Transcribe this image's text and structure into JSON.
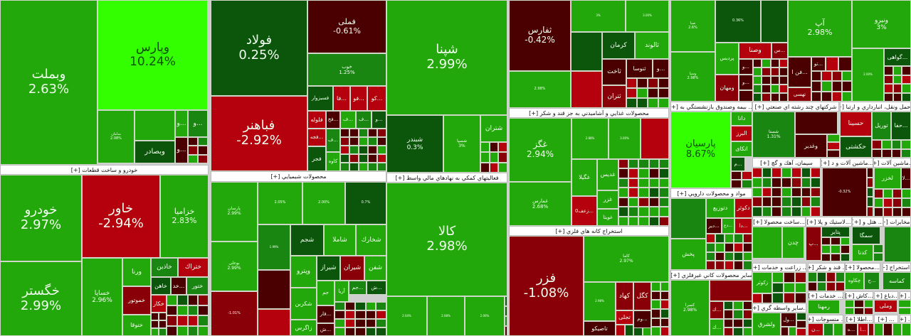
{
  "colors": {
    "lime": "#33ff00",
    "green": "#22a80a",
    "mid": "#1a8612",
    "dark": "#0b560b",
    "darkred": "#4a0000",
    "mred": "#8a0008",
    "red": "#b5000e"
  },
  "headers": [
    "خودرو و ساخت قطعات [+]",
    "محصولات شيميايي [+]",
    "فعاليتهاي كمكي به نهادهاي مالي واسط [+]",
    "محصولات غذايي و آشاميدني به جز قند و شكر [+]",
    "استخراج كانه هاي فلزي [+]",
    "... بيمه وصندوق بازنشستگي به [+]",
    "شركتهاي چند رشته اي صنعتي [+]",
    "...حمل ونقل، انبارداري و ارتبا [+]",
    "مواد و محصولات دارويي [+]",
    "ساير محصولات كاني غيرفلزي [+]",
    "سيمان، آهك و گچ [+]",
    "...ماشين آلات و د [+]",
    "...ماشين آلات [+]",
    "...ساخت محصولا [+]",
    "...لاستيك و پلا [+]",
    "... هتل و [+]",
    "...مخابرات [+]",
    "... زراعت و خدمات [+]",
    "... قند و شكر [+]",
    "...محصولا [+]",
    "...استخراج [+]",
    "... خدمات [+]",
    "...كاش [+]",
    "...دباغ [+]",
    "... [+]",
    "...ساير واسطه گري [+]",
    "... منسوجات [+]",
    "...اطلا [+]",
    "... [+]",
    "... [+]"
  ],
  "tiles": [
    {
      "symbol": "وبملت",
      "change": "2.63%",
      "color": "green"
    },
    {
      "symbol": "وپارس",
      "change": "10.24%",
      "color": "lime"
    },
    {
      "symbol": "سامان",
      "change": "2.08%",
      "color": "green"
    },
    {
      "symbol": "",
      "change": "",
      "color": "green"
    },
    {
      "symbol": "...و",
      "change": "",
      "color": "green"
    },
    {
      "symbol": "...و",
      "change": "",
      "color": "mid"
    },
    {
      "symbol": "وبصادر",
      "change": "",
      "color": "dark"
    },
    {
      "symbol": "...و",
      "change": "",
      "color": "darkred"
    },
    {
      "symbol": "خودرو",
      "change": "2.97%",
      "color": "green"
    },
    {
      "symbol": "خگستر",
      "change": "2.99%",
      "color": "green"
    },
    {
      "symbol": "خاور",
      "change": "-2.94%",
      "color": "red"
    },
    {
      "symbol": "خزاميا",
      "change": "2.83%",
      "color": "green"
    },
    {
      "symbol": "خساپا",
      "change": "2.96%",
      "color": "green"
    },
    {
      "symbol": "ورنا",
      "change": "",
      "color": "green"
    },
    {
      "symbol": "خموتور",
      "change": "",
      "color": "mred"
    },
    {
      "symbol": "ختوقا",
      "change": "",
      "color": "green"
    },
    {
      "symbol": "خاذين",
      "change": "",
      "color": "mid"
    },
    {
      "symbol": "ختراك",
      "change": "",
      "color": "red"
    },
    {
      "symbol": "خاهن",
      "change": "",
      "color": "dark"
    },
    {
      "symbol": "...خد",
      "change": "",
      "color": "darkred"
    },
    {
      "symbol": "ختور",
      "change": "",
      "color": "mid"
    },
    {
      "symbol": "خكار",
      "change": "",
      "color": "red"
    },
    {
      "symbol": "فولاد",
      "change": "0.25%",
      "color": "dark"
    },
    {
      "symbol": "فملی",
      "change": "-0.61%",
      "color": "darkred"
    },
    {
      "symbol": "خوب",
      "change": "1.25%",
      "color": "mid"
    },
    {
      "symbol": "فسبزوار",
      "change": "",
      "color": "dark"
    },
    {
      "symbol": "...فا",
      "change": "",
      "color": "red"
    },
    {
      "symbol": "...فو",
      "change": "",
      "color": "red"
    },
    {
      "symbol": "...كو",
      "change": "",
      "color": "red"
    },
    {
      "symbol": "فباهنر",
      "change": "-2.92%",
      "color": "red"
    },
    {
      "symbol": "فلوله",
      "change": "",
      "color": "red"
    },
    {
      "symbol": "...فخ",
      "change": "",
      "color": "darkred"
    },
    {
      "symbol": "...ف",
      "change": "",
      "color": "green"
    },
    {
      "symbol": "...ف",
      "change": "",
      "color": "mid"
    },
    {
      "symbol": "...و",
      "change": "",
      "color": "dark"
    },
    {
      "symbol": "...فجه",
      "change": "",
      "color": "red"
    },
    {
      "symbol": "...ف",
      "change": "",
      "color": "mid"
    },
    {
      "symbol": "فجر",
      "change": "",
      "color": "dark"
    },
    {
      "symbol": "كاوه",
      "change": "",
      "color": "green"
    },
    {
      "symbol": "پارسان",
      "change": "2.99%",
      "color": "green"
    },
    {
      "symbol": "",
      "change": "2.05%",
      "color": "green"
    },
    {
      "symbol": "",
      "change": "2.00%",
      "color": "green"
    },
    {
      "symbol": "",
      "change": "0.7%",
      "color": "dark"
    },
    {
      "symbol": "بوعلی",
      "change": "2.99%",
      "color": "green"
    },
    {
      "symbol": "",
      "change": "-1.01%",
      "color": "mred"
    },
    {
      "symbol": "",
      "change": "1.99%",
      "color": "mid"
    },
    {
      "symbol": "شجم",
      "change": "",
      "color": "dark"
    },
    {
      "symbol": "شاملا",
      "change": "",
      "color": "green"
    },
    {
      "symbol": "شخارك",
      "change": "",
      "color": "green"
    },
    {
      "symbol": "",
      "change": "",
      "color": "darkred"
    },
    {
      "symbol": "",
      "change": "",
      "color": "red"
    },
    {
      "symbol": "وپترو",
      "change": "",
      "color": "green"
    },
    {
      "symbol": "شيراز",
      "change": "",
      "color": "dark"
    },
    {
      "symbol": "شيران",
      "change": "",
      "color": "mred"
    },
    {
      "symbol": "شفن",
      "change": "",
      "color": "green"
    },
    {
      "symbol": "شكربن",
      "change": "",
      "color": "green"
    },
    {
      "symbol": "زاگرس",
      "change": "",
      "color": "green"
    },
    {
      "symbol": "جم",
      "change": "",
      "color": "green"
    },
    {
      "symbol": "آريا",
      "change": "",
      "color": "green"
    },
    {
      "symbol": "...جم",
      "change": "",
      "color": "mid"
    },
    {
      "symbol": "...ش",
      "change": "",
      "color": "dark"
    },
    {
      "symbol": "...فار",
      "change": "",
      "color": "darkred"
    },
    {
      "symbol": "...ش",
      "change": "",
      "color": "darkred"
    },
    {
      "symbol": "شپنا",
      "change": "2.99%",
      "color": "green"
    },
    {
      "symbol": "شبندر",
      "change": "0.3%",
      "color": "dark"
    },
    {
      "symbol": "شسپا",
      "change": "3%",
      "color": "green"
    },
    {
      "symbol": "شتران",
      "change": "",
      "color": "green"
    },
    {
      "symbol": "كالا",
      "change": "2.98%",
      "color": "green"
    },
    {
      "symbol": "",
      "change": "2.04%",
      "color": "green"
    },
    {
      "symbol": "",
      "change": "2.08%",
      "color": "green"
    },
    {
      "symbol": "",
      "change": "2.00%",
      "color": "green"
    },
    {
      "symbol": "ثفارس",
      "change": "-0.42%",
      "color": "darkred"
    },
    {
      "symbol": "",
      "change": "3%",
      "color": "green"
    },
    {
      "symbol": "",
      "change": "3.00%",
      "color": "green"
    },
    {
      "symbol": "",
      "change": "",
      "color": "dark"
    },
    {
      "symbol": "كرمان",
      "change": "",
      "color": "dark"
    },
    {
      "symbol": "ثالوند",
      "change": "",
      "color": "green"
    },
    {
      "symbol": "",
      "change": "2.98%",
      "color": "green"
    },
    {
      "symbol": "",
      "change": "",
      "color": "red"
    },
    {
      "symbol": "ثاخت",
      "change": "",
      "color": "darkred"
    },
    {
      "symbol": "ثنوسا",
      "change": "",
      "color": "darkred"
    },
    {
      "symbol": "...و",
      "change": "",
      "color": "darkred"
    },
    {
      "symbol": "ثتران",
      "change": "",
      "color": "mred"
    },
    {
      "symbol": "غگز",
      "change": "2.94%",
      "color": "green"
    },
    {
      "symbol": "غمارس",
      "change": "2.68%",
      "color": "green"
    },
    {
      "symbol": "",
      "change": "2.88%",
      "color": "green"
    },
    {
      "symbol": "",
      "change": "3.00%",
      "color": "green"
    },
    {
      "symbol": "",
      "change": "",
      "color": "red"
    },
    {
      "symbol": "غگيلا",
      "change": "",
      "color": "green"
    },
    {
      "symbol": "غديس",
      "change": "",
      "color": "green"
    },
    {
      "symbol": "غزر",
      "change": "",
      "color": "green"
    },
    {
      "symbol": "غويتا",
      "change": "",
      "color": "green"
    },
    {
      "symbol": "...زعف0",
      "change": "",
      "color": "red"
    },
    {
      "symbol": "فزر",
      "change": "-1.08%",
      "color": "mred"
    },
    {
      "symbol": "كاما",
      "change": "2.97%",
      "color": "green"
    },
    {
      "symbol": "",
      "change": "2.98%",
      "color": "green"
    },
    {
      "symbol": "كهاد",
      "change": "",
      "color": "mred"
    },
    {
      "symbol": "كگل",
      "change": "",
      "color": "mred"
    },
    {
      "symbol": "تجلی",
      "change": "",
      "color": "red"
    },
    {
      "symbol": "...وم",
      "change": "",
      "color": "darkred"
    },
    {
      "symbol": "تاصيكو",
      "change": "",
      "color": "darkred"
    },
    {
      "symbol": "صبا",
      "change": "2.6%",
      "color": "green"
    },
    {
      "symbol": "",
      "change": "0.36%",
      "color": "dark"
    },
    {
      "symbol": "",
      "change": "",
      "color": "dark"
    },
    {
      "symbol": "وسپا",
      "change": "2.98%",
      "color": "green"
    },
    {
      "symbol": "پرديس",
      "change": "",
      "color": "green"
    },
    {
      "symbol": "وصنا",
      "change": "",
      "color": "red"
    },
    {
      "symbol": "...س",
      "change": "",
      "color": "mred"
    },
    {
      "symbol": "ومهان",
      "change": "",
      "color": "mred"
    },
    {
      "symbol": "...و",
      "change": "",
      "color": "darkred"
    },
    {
      "symbol": "...و",
      "change": "",
      "color": "darkred"
    },
    {
      "symbol": "آپ",
      "change": "2.98%",
      "color": "green"
    },
    {
      "symbol": "...فن ا",
      "change": "",
      "color": "darkred"
    },
    {
      "symbol": "...تو",
      "change": "",
      "color": "darkred"
    },
    {
      "symbol": "",
      "change": "",
      "color": "red"
    },
    {
      "symbol": "",
      "change": "",
      "color": "darkred"
    },
    {
      "symbol": "تهسی",
      "change": "",
      "color": "mred"
    },
    {
      "symbol": "ونيرو",
      "change": "3%",
      "color": "green"
    },
    {
      "symbol": "",
      "change": "2.00%",
      "color": "green"
    },
    {
      "symbol": "...گواهی",
      "change": "",
      "color": "dark"
    },
    {
      "symbol": "پارسيان",
      "change": "8.67%",
      "color": "lime"
    },
    {
      "symbol": "دانا",
      "change": "",
      "color": "green"
    },
    {
      "symbol": "البرز",
      "change": "",
      "color": "red"
    },
    {
      "symbol": "اتكای",
      "change": "",
      "color": "green"
    },
    {
      "symbol": "...م",
      "change": "",
      "color": "dark"
    },
    {
      "symbol": "",
      "change": "",
      "color": "mid"
    },
    {
      "symbol": "پخش",
      "change": "",
      "color": "green"
    },
    {
      "symbol": "دتوزيع",
      "change": "",
      "color": "green"
    },
    {
      "symbol": "دكوثر",
      "change": "",
      "color": "red"
    },
    {
      "symbol": "...دير",
      "change": "",
      "color": "darkred"
    },
    {
      "symbol": "...دع",
      "change": "",
      "color": "green"
    },
    {
      "symbol": "...دا",
      "change": "",
      "color": "red"
    },
    {
      "symbol": "كسرا",
      "change": "2.98%",
      "color": "green"
    },
    {
      "symbol": "",
      "change": "",
      "color": "mred"
    },
    {
      "symbol": "...ك",
      "change": "",
      "color": "mred"
    },
    {
      "symbol": "...ك",
      "change": "",
      "color": "green"
    },
    {
      "symbol": "شستا",
      "change": "1.31%",
      "color": "mid"
    },
    {
      "symbol": "",
      "change": "",
      "color": "darkred"
    },
    {
      "symbol": "وغدير",
      "change": "",
      "color": "darkred"
    },
    {
      "symbol": "حسينا",
      "change": "",
      "color": "red"
    },
    {
      "symbol": "حكشتی",
      "change": "",
      "color": "dark"
    },
    {
      "symbol": "توريل",
      "change": "",
      "color": "mid"
    },
    {
      "symbol": "...حفا",
      "change": "",
      "color": "dark"
    },
    {
      "symbol": "",
      "change": "-0.32%",
      "color": "darkred"
    },
    {
      "symbol": "لخزر",
      "change": "",
      "color": "green"
    },
    {
      "symbol": "...لا",
      "change": "",
      "color": "darkred"
    },
    {
      "symbol": "",
      "change": "",
      "color": "green"
    },
    {
      "symbol": "چدن",
      "change": "",
      "color": "green"
    },
    {
      "symbol": "...پ",
      "change": "",
      "color": "mred"
    },
    {
      "symbol": "پتاير",
      "change": "",
      "color": "dark"
    },
    {
      "symbol": "سمگا",
      "change": "",
      "color": "dark"
    },
    {
      "symbol": "كدنا",
      "change": "",
      "color": "green"
    },
    {
      "symbol": "",
      "change": "",
      "color": "mid"
    },
    {
      "symbol": "زكوثر",
      "change": "",
      "color": "green"
    },
    {
      "symbol": "چكاوه",
      "change": "",
      "color": "green"
    },
    {
      "symbol": "...ج",
      "change": "",
      "color": "mid"
    },
    {
      "symbol": "كماسه",
      "change": "",
      "color": "mid"
    },
    {
      "symbol": "رمهنا",
      "change": "",
      "color": "green"
    },
    {
      "symbol": "وملی",
      "change": "",
      "color": "red"
    },
    {
      "symbol": "ولشرق",
      "change": "",
      "color": "green"
    },
    {
      "symbol": "...ول",
      "change": "",
      "color": "darkred"
    },
    {
      "symbol": "...ن",
      "change": "",
      "color": "red"
    },
    {
      "symbol": "...ه",
      "change": "",
      "color": "darkred"
    },
    {
      "symbol": "...ا",
      "change": "",
      "color": "red"
    }
  ]
}
